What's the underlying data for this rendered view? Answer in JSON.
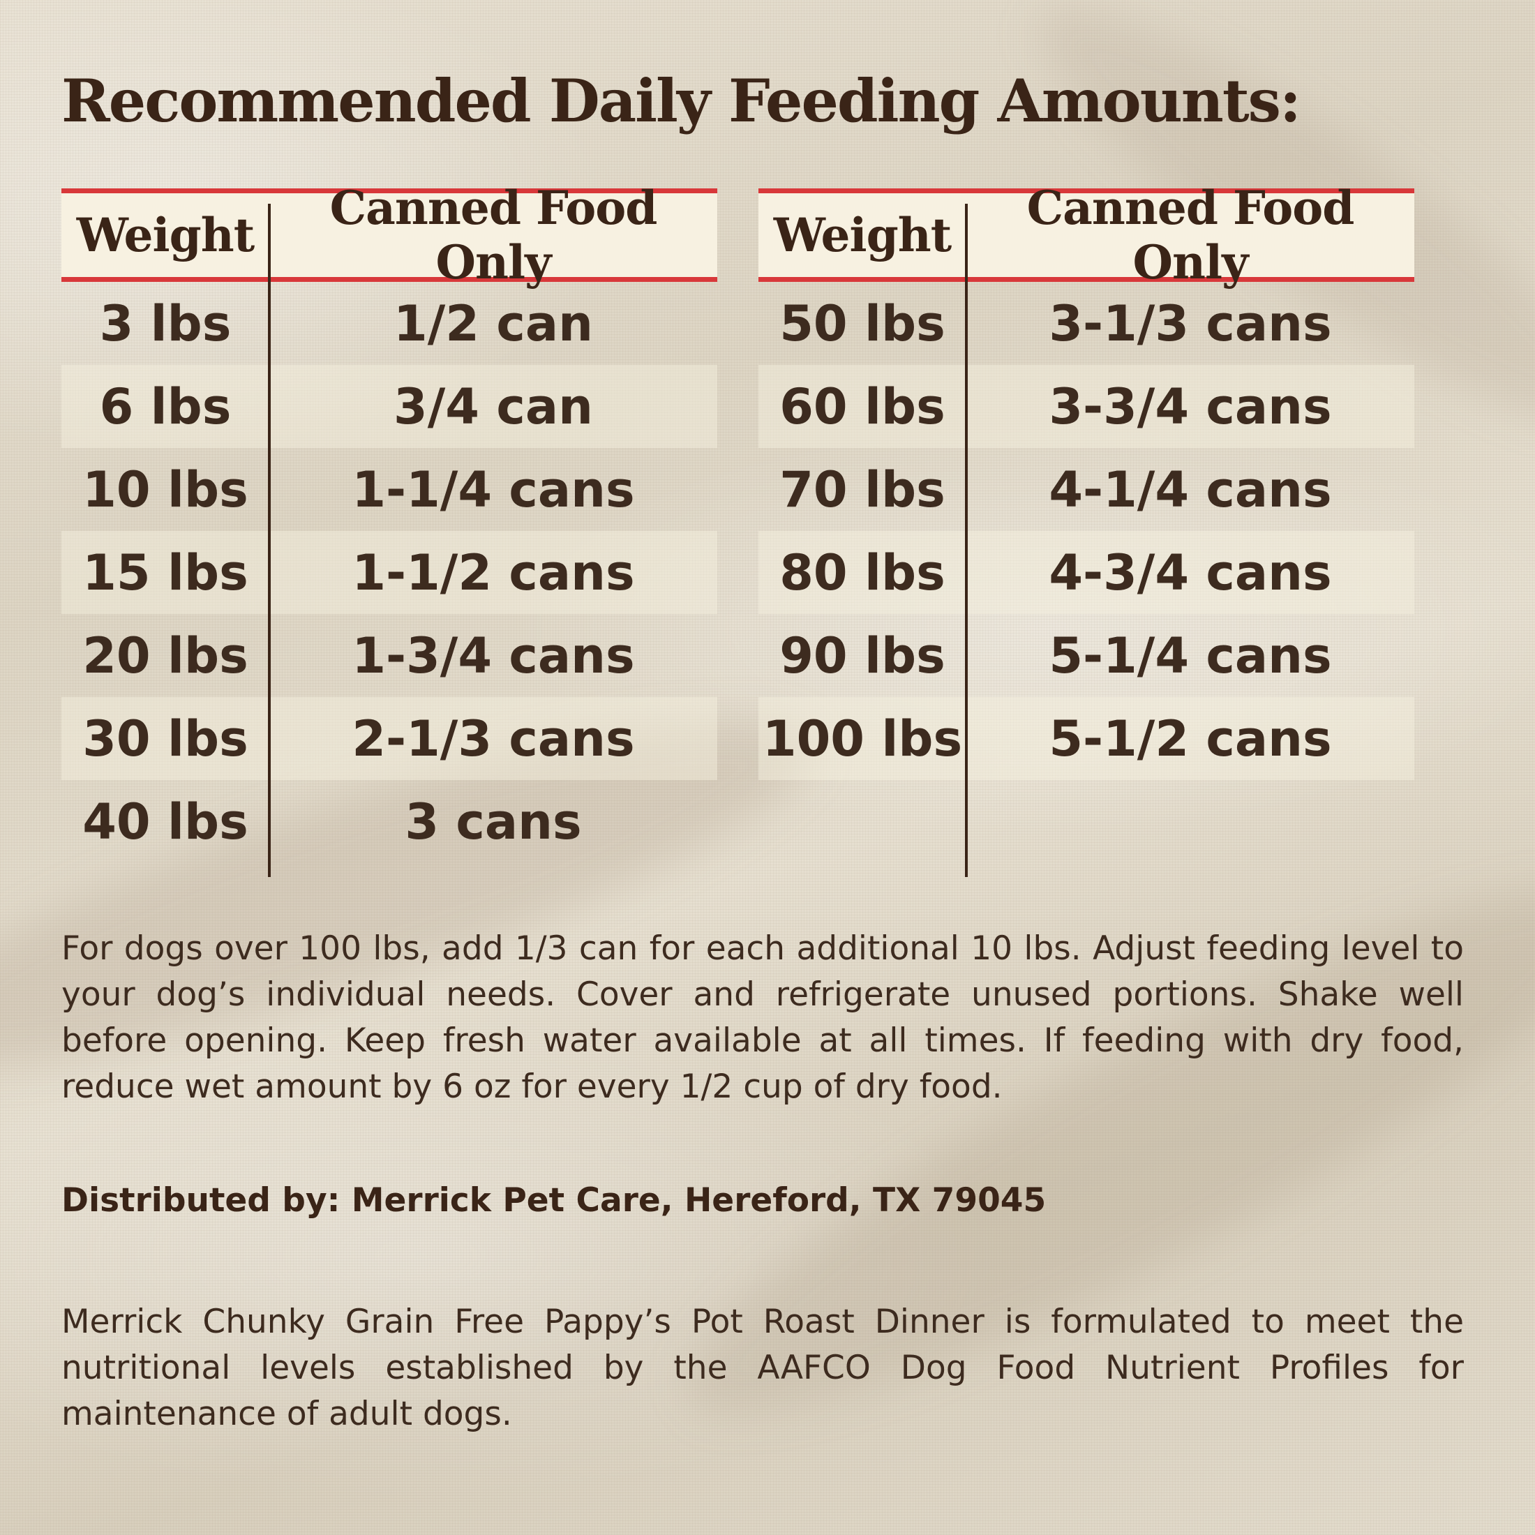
{
  "title": "Recommended Daily Feeding Amounts:",
  "table_left": {
    "header": {
      "weight": "Weight",
      "food": "Canned Food Only"
    },
    "rows": [
      {
        "weight": "3 lbs",
        "food": "1/2 can"
      },
      {
        "weight": "6 lbs",
        "food": "3/4 can"
      },
      {
        "weight": "10 lbs",
        "food": "1-1/4 cans"
      },
      {
        "weight": "15 lbs",
        "food": "1-1/2 cans"
      },
      {
        "weight": "20 lbs",
        "food": "1-3/4 cans"
      },
      {
        "weight": "30 lbs",
        "food": "2-1/3 cans"
      },
      {
        "weight": "40 lbs",
        "food": "3 cans"
      }
    ]
  },
  "table_right": {
    "header": {
      "weight": "Weight",
      "food": "Canned Food Only"
    },
    "rows": [
      {
        "weight": "50 lbs",
        "food": "3-1/3 cans"
      },
      {
        "weight": "60 lbs",
        "food": "3-3/4 cans"
      },
      {
        "weight": "70 lbs",
        "food": "4-1/4 cans"
      },
      {
        "weight": "80 lbs",
        "food": "4-3/4 cans"
      },
      {
        "weight": "90 lbs",
        "food": "5-1/4 cans"
      },
      {
        "weight": "100 lbs",
        "food": "5-1/2 cans"
      }
    ]
  },
  "instructions": "For dogs over 100 lbs, add 1/3 can for each additional 10 lbs. Adjust feeding level to your dog’s individual needs. Cover and refrigerate unused portions. Shake well before opening. Keep fresh water available at all times. If feeding with dry food, reduce wet amount by 6 oz for every 1/2 cup of dry food.",
  "distributor": "Distributed by: Merrick Pet Care, Hereford, TX 79045",
  "aafco_statement": "Merrick Chunky Grain Free Pappy’s Pot Roast Dinner is formulated to meet the nutritional levels established by the AAFCO Dog Food Nutrient Profiles for maintenance of adult dogs."
}
